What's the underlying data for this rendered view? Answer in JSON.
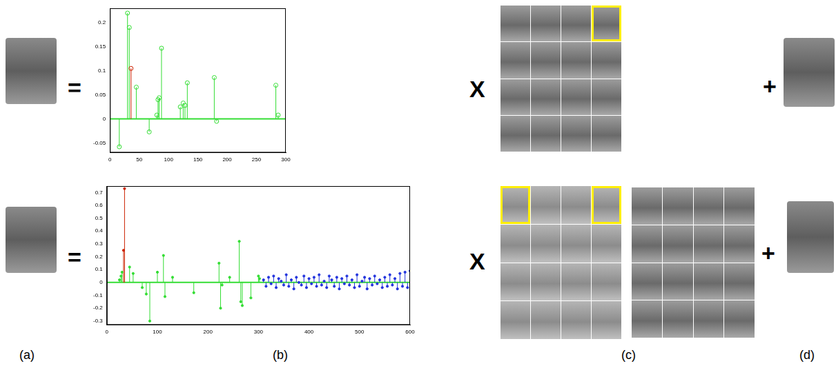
{
  "chart_data": [
    {
      "type": "stem",
      "xlim": [
        0,
        300
      ],
      "xticks": [
        0,
        50,
        100,
        150,
        200,
        250,
        300
      ],
      "ylim": [
        -0.07,
        0.23
      ],
      "yticks": [
        -0.05,
        0,
        0.05,
        0.1,
        0.15,
        0.2
      ],
      "grid": false,
      "series": [
        {
          "color": "#33dd33",
          "marker": "circle",
          "x": [
            16,
            30,
            33,
            45,
            67,
            80,
            82,
            84,
            88,
            120,
            125,
            128,
            132,
            178,
            182,
            283,
            287
          ],
          "values": [
            -0.058,
            0.22,
            0.19,
            0.066,
            -0.027,
            0.008,
            0.04,
            0.044,
            0.147,
            0.025,
            0.033,
            0.028,
            0.075,
            0.086,
            -0.005,
            0.07,
            0.008
          ]
        },
        {
          "color": "#cc2200",
          "marker": "circle",
          "x": [
            36
          ],
          "values": [
            0.105
          ]
        }
      ]
    },
    {
      "type": "stem",
      "xlim": [
        0,
        600
      ],
      "xticks": [
        0,
        100,
        200,
        300,
        400,
        500,
        600
      ],
      "ylim": [
        -0.33,
        0.75
      ],
      "yticks": [
        -0.3,
        -0.2,
        -0.1,
        0,
        0.1,
        0.2,
        0.3,
        0.4,
        0.5,
        0.6,
        0.7
      ],
      "grid": false,
      "series": [
        {
          "color": "#33dd33",
          "marker": "dot",
          "x": [
            25,
            28,
            30,
            45,
            52,
            70,
            78,
            85,
            100,
            112,
            115,
            130,
            172,
            222,
            225,
            228,
            243,
            262,
            265,
            268,
            285,
            300,
            302
          ],
          "values": [
            0.02,
            0.05,
            0.08,
            0.12,
            0.07,
            -0.04,
            -0.09,
            -0.3,
            0.08,
            0.21,
            -0.11,
            0.04,
            -0.08,
            0.15,
            -0.2,
            -0.02,
            0.04,
            0.32,
            -0.15,
            -0.18,
            -0.12,
            0.05,
            0.03
          ]
        },
        {
          "color": "#cc2200",
          "marker": "dot",
          "x": [
            33,
            35
          ],
          "values": [
            0.25,
            0.73
          ]
        },
        {
          "color": "#2233dd",
          "marker": "dot",
          "x": [
            310,
            315,
            320,
            325,
            330,
            335,
            340,
            345,
            350,
            355,
            360,
            365,
            370,
            375,
            380,
            385,
            390,
            395,
            400,
            405,
            410,
            415,
            420,
            425,
            430,
            435,
            440,
            445,
            450,
            455,
            460,
            465,
            470,
            475,
            480,
            485,
            490,
            495,
            500,
            505,
            510,
            515,
            520,
            525,
            530,
            535,
            540,
            545,
            550,
            555,
            560,
            565,
            570,
            575,
            580,
            585,
            590,
            595,
            600
          ],
          "values": [
            0.02,
            -0.03,
            0.04,
            -0.01,
            0.05,
            -0.04,
            0.03,
            0.01,
            -0.02,
            0.06,
            -0.03,
            0.02,
            -0.05,
            0.04,
            0.0,
            -0.02,
            0.05,
            -0.04,
            0.03,
            -0.01,
            0.04,
            -0.03,
            0.06,
            -0.02,
            0.01,
            -0.04,
            0.05,
            0.02,
            -0.03,
            0.04,
            -0.05,
            0.03,
            -0.01,
            0.05,
            -0.02,
            0.02,
            -0.04,
            0.06,
            -0.03,
            0.01,
            0.04,
            -0.05,
            0.03,
            -0.02,
            0.05,
            -0.01,
            0.02,
            -0.04,
            0.04,
            -0.03,
            0.06,
            -0.02,
            0.03,
            -0.05,
            0.07,
            -0.03,
            0.08,
            -0.04,
            0.09
          ]
        }
      ]
    }
  ],
  "figure": {
    "equals": "=",
    "times": "X",
    "plus": "+",
    "panel_labels": [
      "(a)",
      "(b)",
      "(c)",
      "(d)"
    ]
  }
}
